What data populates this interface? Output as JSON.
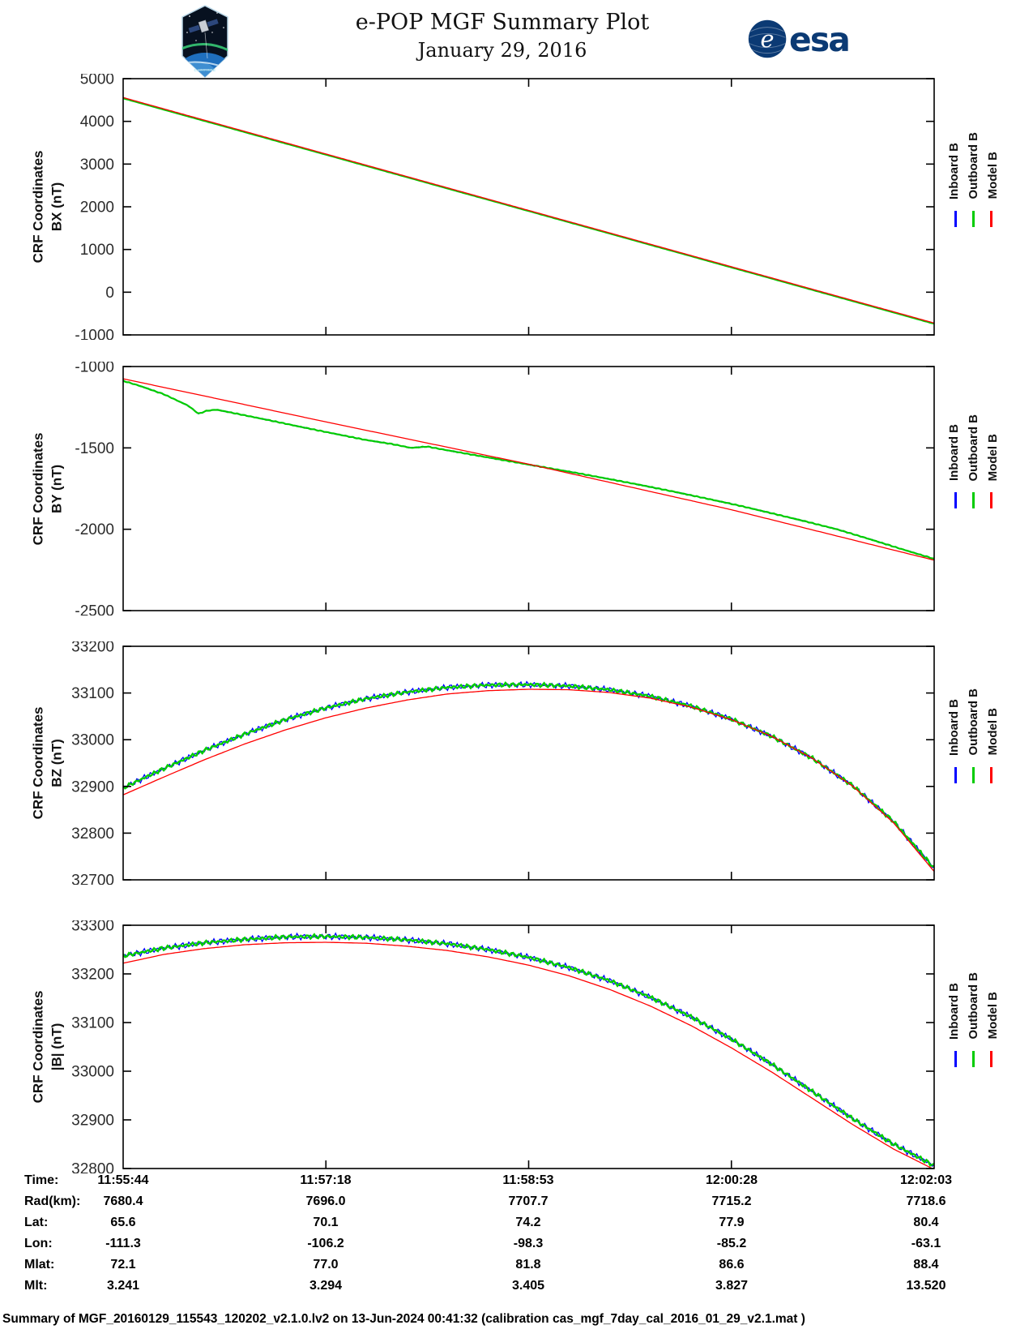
{
  "header": {
    "title": "e-POP MGF Summary Plot",
    "date": "January 29, 2016",
    "mission_patch": "CASSIOPE",
    "esa_logo_text": "esa",
    "esa_globe_letter": "e"
  },
  "colors": {
    "inboard": "#0000FF",
    "outboard": "#00CC00",
    "model": "#FF0000",
    "axis": "#000000",
    "tick_text": "#2b2b2b",
    "esa_navy": "#0b3a74"
  },
  "legend": {
    "position": "right",
    "entries": [
      {
        "label": "Inboard B",
        "color": "#0000FF"
      },
      {
        "label": "Outboard B",
        "color": "#00CC00"
      },
      {
        "label": "Model B",
        "color": "#FF0000"
      }
    ]
  },
  "chart_data": [
    {
      "name": "bx",
      "type": "line",
      "ylabel_line1": "CRF Coordinates",
      "ylabel_line2": "BX (nT)",
      "ylim": [
        -1000,
        5000
      ],
      "yticks": [
        5000,
        4000,
        3000,
        2000,
        1000,
        0,
        -1000
      ],
      "xlim": [
        0,
        1
      ],
      "xticks": [
        0,
        0.25,
        0.5,
        0.75,
        1
      ],
      "xticklabels": [
        "11:55:44",
        "11:57:18",
        "11:58:53",
        "12:00:28",
        "12:02:03"
      ],
      "grid": false,
      "series": [
        {
          "name": "Inboard B",
          "color": "#0000FF",
          "width": 1.3,
          "noise": 2,
          "points": [
            [
              0,
              4540
            ],
            [
              1,
              -735
            ]
          ]
        },
        {
          "name": "Outboard B",
          "color": "#00CC00",
          "width": 2.2,
          "noise": 1.5,
          "points": [
            [
              0,
              4540
            ],
            [
              1,
              -738
            ]
          ]
        },
        {
          "name": "Model B",
          "color": "#FF0000",
          "width": 1.3,
          "noise": 0,
          "points": [
            [
              0,
              4558
            ],
            [
              0.5,
              1915
            ],
            [
              1,
              -722
            ]
          ]
        }
      ]
    },
    {
      "name": "by",
      "type": "line",
      "ylabel_line1": "CRF Coordinates",
      "ylabel_line2": "BY (nT)",
      "ylim": [
        -2500,
        -1000
      ],
      "yticks": [
        -1000,
        -1500,
        -2000,
        -2500
      ],
      "xlim": [
        0,
        1
      ],
      "xticks": [
        0,
        0.25,
        0.5,
        0.75,
        1
      ],
      "xticklabels": [
        "11:55:44",
        "11:57:18",
        "11:58:53",
        "12:00:28",
        "12:02:03"
      ],
      "grid": false,
      "series": [
        {
          "name": "Inboard B",
          "color": "#0000FF",
          "width": 1.3,
          "noise": 3,
          "points": [
            [
              0,
              -1088
            ],
            [
              0.02,
              -1118
            ],
            [
              0.05,
              -1170
            ],
            [
              0.08,
              -1240
            ],
            [
              0.093,
              -1290
            ],
            [
              0.103,
              -1272
            ],
            [
              0.115,
              -1265
            ],
            [
              0.14,
              -1290
            ],
            [
              0.18,
              -1330
            ],
            [
              0.22,
              -1372
            ],
            [
              0.26,
              -1412
            ],
            [
              0.3,
              -1452
            ],
            [
              0.33,
              -1475
            ],
            [
              0.355,
              -1500
            ],
            [
              0.375,
              -1492
            ],
            [
              0.4,
              -1515
            ],
            [
              0.44,
              -1550
            ],
            [
              0.48,
              -1585
            ],
            [
              0.52,
              -1620
            ],
            [
              0.56,
              -1655
            ],
            [
              0.6,
              -1692
            ],
            [
              0.64,
              -1730
            ],
            [
              0.68,
              -1770
            ],
            [
              0.72,
              -1812
            ],
            [
              0.76,
              -1855
            ],
            [
              0.8,
              -1902
            ],
            [
              0.84,
              -1950
            ],
            [
              0.88,
              -2000
            ],
            [
              0.92,
              -2060
            ],
            [
              0.96,
              -2122
            ],
            [
              1,
              -2182
            ]
          ]
        },
        {
          "name": "Outboard B",
          "color": "#00CC00",
          "width": 2.2,
          "noise": 2.5,
          "points": [
            [
              0,
              -1088
            ],
            [
              0.02,
              -1118
            ],
            [
              0.05,
              -1170
            ],
            [
              0.08,
              -1240
            ],
            [
              0.093,
              -1290
            ],
            [
              0.103,
              -1272
            ],
            [
              0.115,
              -1265
            ],
            [
              0.14,
              -1290
            ],
            [
              0.18,
              -1330
            ],
            [
              0.22,
              -1372
            ],
            [
              0.26,
              -1412
            ],
            [
              0.3,
              -1452
            ],
            [
              0.33,
              -1475
            ],
            [
              0.355,
              -1500
            ],
            [
              0.375,
              -1492
            ],
            [
              0.4,
              -1515
            ],
            [
              0.44,
              -1550
            ],
            [
              0.48,
              -1585
            ],
            [
              0.52,
              -1620
            ],
            [
              0.56,
              -1655
            ],
            [
              0.6,
              -1692
            ],
            [
              0.64,
              -1730
            ],
            [
              0.68,
              -1770
            ],
            [
              0.72,
              -1812
            ],
            [
              0.76,
              -1855
            ],
            [
              0.8,
              -1902
            ],
            [
              0.84,
              -1950
            ],
            [
              0.88,
              -2000
            ],
            [
              0.92,
              -2060
            ],
            [
              0.96,
              -2122
            ],
            [
              1,
              -2182
            ]
          ]
        },
        {
          "name": "Model B",
          "color": "#FF0000",
          "width": 1.3,
          "noise": 0,
          "points": [
            [
              0,
              -1075
            ],
            [
              0.25,
              -1340
            ],
            [
              0.5,
              -1600
            ],
            [
              0.75,
              -1880
            ],
            [
              1,
              -2190
            ]
          ]
        }
      ]
    },
    {
      "name": "bz",
      "type": "line",
      "ylabel_line1": "CRF Coordinates",
      "ylabel_line2": "BZ (nT)",
      "ylim": [
        32700,
        33200
      ],
      "yticks": [
        33200,
        33100,
        33000,
        32900,
        32800,
        32700
      ],
      "xlim": [
        0,
        1
      ],
      "xticks": [
        0,
        0.25,
        0.5,
        0.75,
        1
      ],
      "xticklabels": [
        "11:55:44",
        "11:57:18",
        "11:58:53",
        "12:00:28",
        "12:02:03"
      ],
      "grid": false,
      "series": [
        {
          "name": "Inboard B",
          "color": "#0000FF",
          "width": 1.3,
          "noise": 7,
          "points": [
            [
              0,
              32897
            ],
            [
              0.05,
              32938
            ],
            [
              0.1,
              32977
            ],
            [
              0.15,
              33012
            ],
            [
              0.2,
              33043
            ],
            [
              0.25,
              33068
            ],
            [
              0.3,
              33088
            ],
            [
              0.35,
              33102
            ],
            [
              0.4,
              33112
            ],
            [
              0.45,
              33117
            ],
            [
              0.5,
              33118
            ],
            [
              0.55,
              33115
            ],
            [
              0.6,
              33107
            ],
            [
              0.65,
              33093
            ],
            [
              0.7,
              33072
            ],
            [
              0.75,
              33044
            ],
            [
              0.8,
              33007
            ],
            [
              0.85,
              32960
            ],
            [
              0.9,
              32901
            ],
            [
              0.95,
              32825
            ],
            [
              1,
              32725
            ]
          ]
        },
        {
          "name": "Outboard B",
          "color": "#00CC00",
          "width": 2.4,
          "noise": 4.5,
          "points": [
            [
              0,
              32897
            ],
            [
              0.05,
              32938
            ],
            [
              0.1,
              32977
            ],
            [
              0.15,
              33012
            ],
            [
              0.2,
              33043
            ],
            [
              0.25,
              33068
            ],
            [
              0.3,
              33088
            ],
            [
              0.35,
              33102
            ],
            [
              0.4,
              33112
            ],
            [
              0.45,
              33117
            ],
            [
              0.5,
              33118
            ],
            [
              0.55,
              33115
            ],
            [
              0.6,
              33107
            ],
            [
              0.65,
              33093
            ],
            [
              0.7,
              33072
            ],
            [
              0.75,
              33044
            ],
            [
              0.8,
              33007
            ],
            [
              0.85,
              32960
            ],
            [
              0.9,
              32901
            ],
            [
              0.95,
              32825
            ],
            [
              1,
              32725
            ]
          ]
        },
        {
          "name": "Model B",
          "color": "#FF0000",
          "width": 1.3,
          "noise": 0,
          "points": [
            [
              0,
              32882
            ],
            [
              0.05,
              32920
            ],
            [
              0.1,
              32957
            ],
            [
              0.15,
              32991
            ],
            [
              0.2,
              33021
            ],
            [
              0.25,
              33047
            ],
            [
              0.3,
              33068
            ],
            [
              0.35,
              33085
            ],
            [
              0.4,
              33098
            ],
            [
              0.45,
              33105
            ],
            [
              0.5,
              33108
            ],
            [
              0.55,
              33107
            ],
            [
              0.6,
              33101
            ],
            [
              0.65,
              33089
            ],
            [
              0.7,
              33070
            ],
            [
              0.75,
              33043
            ],
            [
              0.8,
              33007
            ],
            [
              0.85,
              32960
            ],
            [
              0.9,
              32900
            ],
            [
              0.95,
              32822
            ],
            [
              1,
              32718
            ]
          ]
        }
      ]
    },
    {
      "name": "bmag",
      "type": "line",
      "ylabel_line1": "CRF Coordinates",
      "ylabel_line2": "|B| (nT)",
      "ylim": [
        32800,
        33300
      ],
      "yticks": [
        33300,
        33200,
        33100,
        33000,
        32900,
        32800
      ],
      "xlim": [
        0,
        1
      ],
      "xticks": [
        0,
        0.25,
        0.5,
        0.75,
        1
      ],
      "xticklabels": [
        "11:55:44",
        "11:57:18",
        "11:58:53",
        "12:00:28",
        "12:02:03"
      ],
      "grid": false,
      "series": [
        {
          "name": "Inboard B",
          "color": "#0000FF",
          "width": 1.3,
          "noise": 7,
          "points": [
            [
              0,
              33237
            ],
            [
              0.05,
              33253
            ],
            [
              0.1,
              33264
            ],
            [
              0.15,
              33271
            ],
            [
              0.2,
              33276
            ],
            [
              0.25,
              33277
            ],
            [
              0.3,
              33275
            ],
            [
              0.35,
              33270
            ],
            [
              0.4,
              33262
            ],
            [
              0.45,
              33250
            ],
            [
              0.5,
              33234
            ],
            [
              0.55,
              33213
            ],
            [
              0.6,
              33186
            ],
            [
              0.65,
              33152
            ],
            [
              0.7,
              33112
            ],
            [
              0.75,
              33066
            ],
            [
              0.8,
              33014
            ],
            [
              0.85,
              32958
            ],
            [
              0.9,
              32902
            ],
            [
              0.95,
              32850
            ],
            [
              1,
              32806
            ]
          ]
        },
        {
          "name": "Outboard B",
          "color": "#00CC00",
          "width": 2.4,
          "noise": 4.5,
          "points": [
            [
              0,
              33237
            ],
            [
              0.05,
              33253
            ],
            [
              0.1,
              33264
            ],
            [
              0.15,
              33271
            ],
            [
              0.2,
              33276
            ],
            [
              0.25,
              33277
            ],
            [
              0.3,
              33275
            ],
            [
              0.35,
              33270
            ],
            [
              0.4,
              33262
            ],
            [
              0.45,
              33250
            ],
            [
              0.5,
              33234
            ],
            [
              0.55,
              33213
            ],
            [
              0.6,
              33186
            ],
            [
              0.65,
              33152
            ],
            [
              0.7,
              33112
            ],
            [
              0.75,
              33066
            ],
            [
              0.8,
              33014
            ],
            [
              0.85,
              32958
            ],
            [
              0.9,
              32902
            ],
            [
              0.95,
              32850
            ],
            [
              1,
              32806
            ]
          ]
        },
        {
          "name": "Model B",
          "color": "#FF0000",
          "width": 1.3,
          "noise": 0,
          "points": [
            [
              0,
              33222
            ],
            [
              0.05,
              33240
            ],
            [
              0.1,
              33252
            ],
            [
              0.15,
              33260
            ],
            [
              0.2,
              33264
            ],
            [
              0.25,
              33265
            ],
            [
              0.3,
              33263
            ],
            [
              0.35,
              33257
            ],
            [
              0.4,
              33248
            ],
            [
              0.45,
              33235
            ],
            [
              0.5,
              33218
            ],
            [
              0.55,
              33196
            ],
            [
              0.6,
              33168
            ],
            [
              0.65,
              33134
            ],
            [
              0.7,
              33094
            ],
            [
              0.75,
              33048
            ],
            [
              0.8,
              32998
            ],
            [
              0.85,
              32944
            ],
            [
              0.9,
              32890
            ],
            [
              0.95,
              32840
            ],
            [
              1,
              32798
            ]
          ]
        }
      ]
    }
  ],
  "info_table": {
    "rows": [
      {
        "label": "Time:",
        "values": [
          "11:55:44",
          "11:57:18",
          "11:58:53",
          "12:00:28",
          "12:02:03"
        ]
      },
      {
        "label": "Rad(km):",
        "values": [
          "7680.4",
          "7696.0",
          "7707.7",
          "7715.2",
          "7718.6"
        ]
      },
      {
        "label": "Lat:",
        "values": [
          "65.6",
          "70.1",
          "74.2",
          "77.9",
          "80.4"
        ]
      },
      {
        "label": "Lon:",
        "values": [
          "-111.3",
          "-106.2",
          "-98.3",
          "-85.2",
          "-63.1"
        ]
      },
      {
        "label": "Mlat:",
        "values": [
          "72.1",
          "77.0",
          "81.8",
          "86.6",
          "88.4"
        ]
      },
      {
        "label": "Mlt:",
        "values": [
          "3.241",
          "3.294",
          "3.405",
          "3.827",
          "13.520"
        ]
      }
    ]
  },
  "footer": {
    "text": "Summary of MGF_20160129_115543_120202_v2.1.0.lv2 on 13-Jun-2024 00:41:32 (calibration cas_mgf_7day_cal_2016_01_29_v2.1.mat )"
  }
}
